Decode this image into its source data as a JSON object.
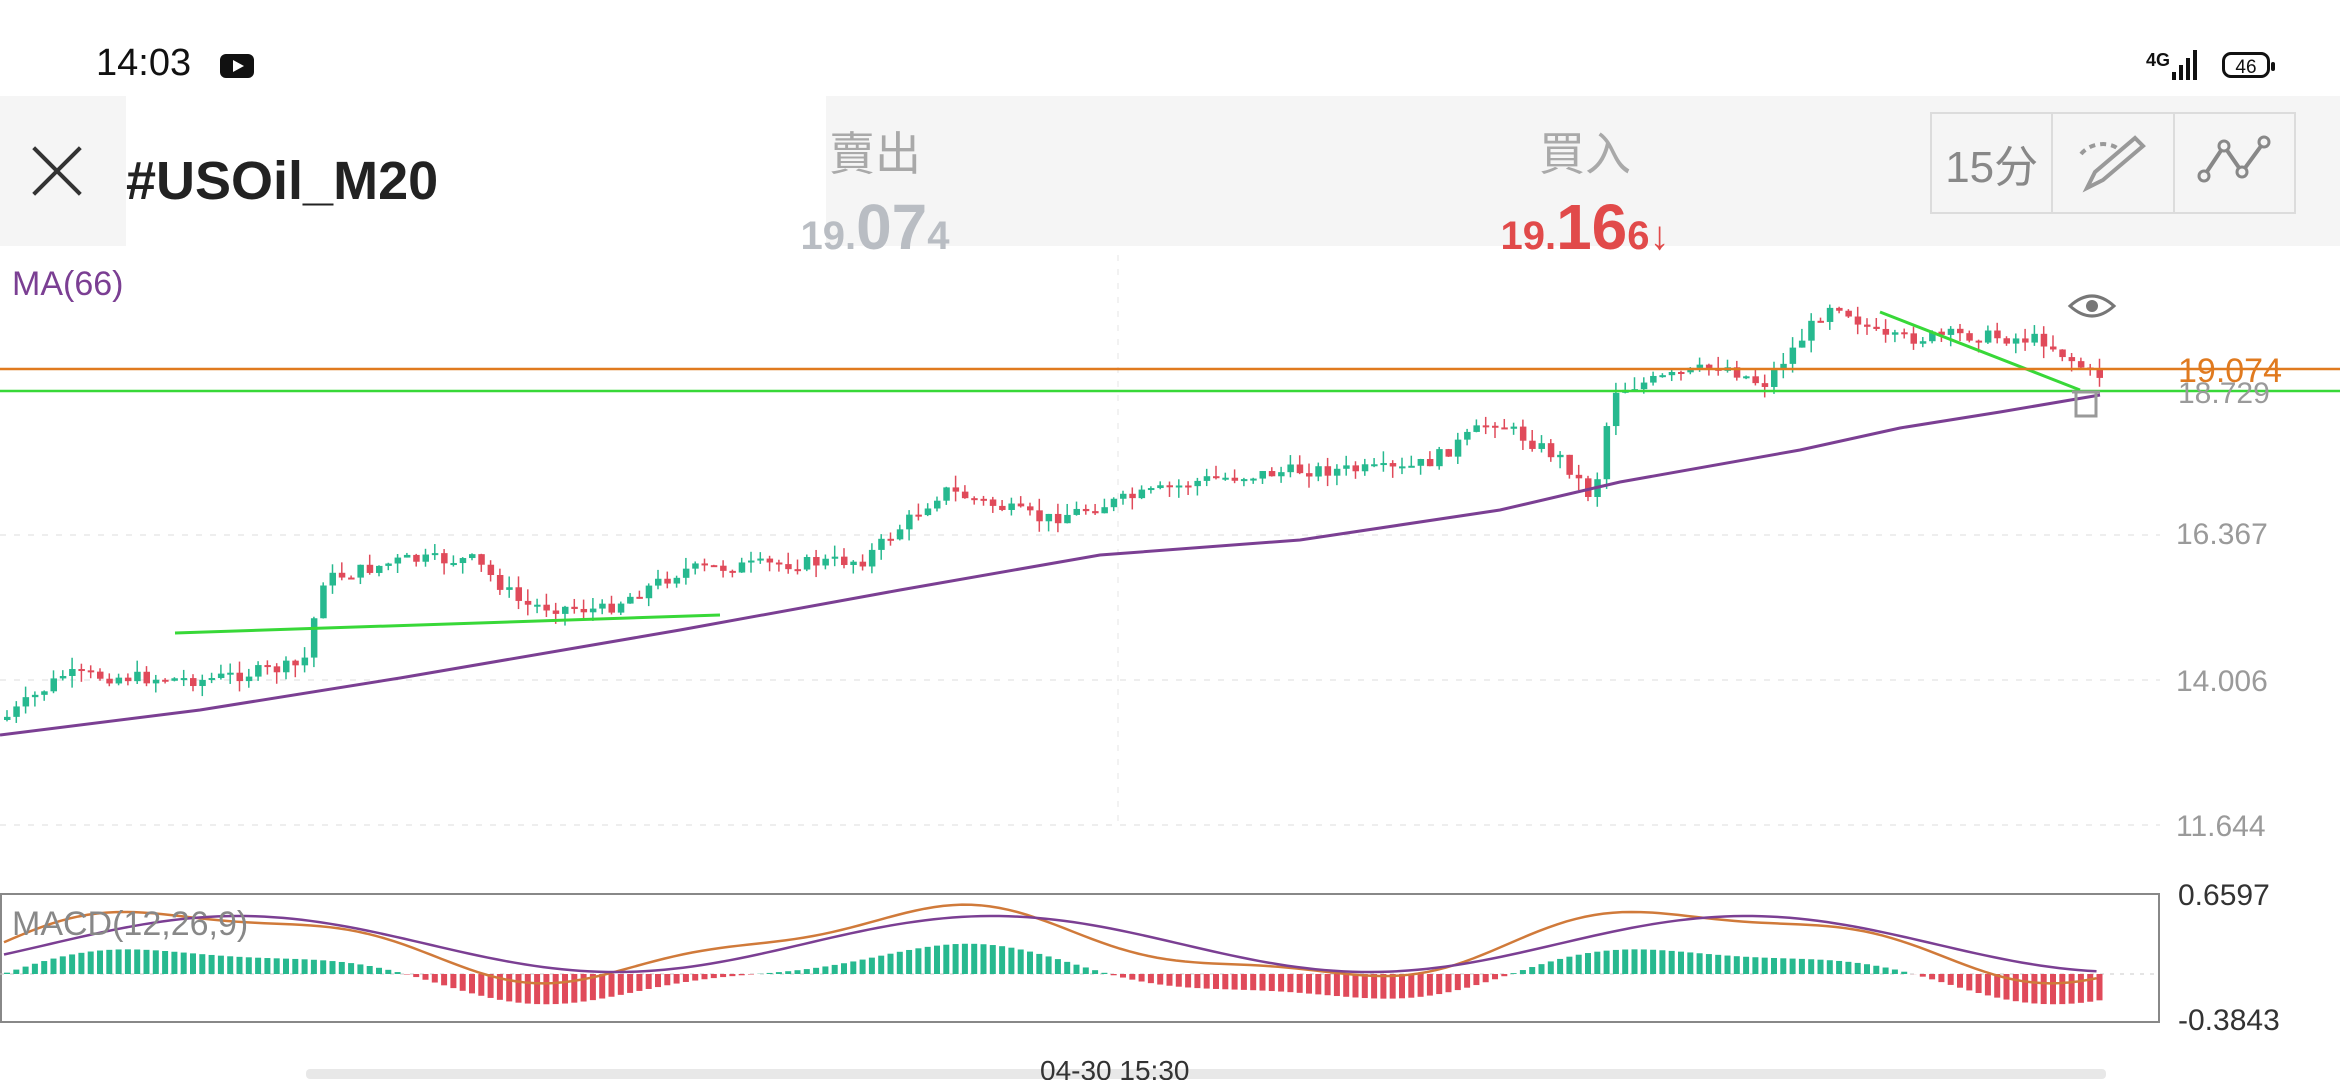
{
  "status_bar": {
    "time": "14:03",
    "network": "4G",
    "battery": "46"
  },
  "header": {
    "symbol": "#USOil_M20",
    "sell": {
      "label": "賣出",
      "prefix": "19.",
      "big": "07",
      "suffix": "4"
    },
    "buy": {
      "label": "買入",
      "prefix": "19.",
      "big": "16",
      "suffix": "6↓"
    },
    "timeframe_label": "15分",
    "icons": [
      "close-icon",
      "draw-icon",
      "indicator-icon"
    ]
  },
  "main_chart": {
    "indicator_label": "MA(66)",
    "y_labels": [
      "16.367",
      "14.006",
      "11.644"
    ],
    "price_line": {
      "label": "19.074",
      "color": "#e07a1f"
    },
    "hline": {
      "label": "18.729",
      "color": "#38d838"
    },
    "ma_color": "#7b3f93",
    "up_color": "#26b98f",
    "down_color": "#e04a5a"
  },
  "macd": {
    "label": "MACD(12,26,9)",
    "y_top": "0.6597",
    "y_bottom": "-0.3843",
    "macd_color": "#d07a3a",
    "signal_color": "#7b3f93"
  },
  "x_axis": {
    "time_label": "04-30 15:30"
  }
}
